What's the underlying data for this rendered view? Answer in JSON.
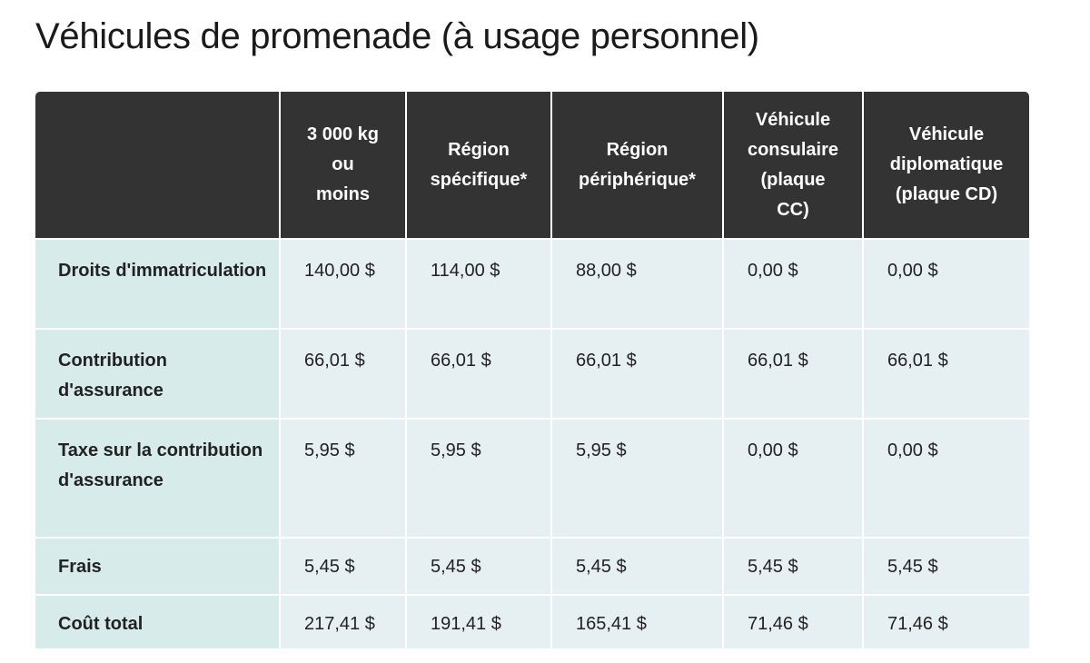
{
  "title": "Véhicules de promenade (à usage personnel)",
  "table": {
    "headers": [
      "",
      "3 000 kg\nou\nmoins",
      "Région\nspécifique*",
      "Région\npériphérique*",
      "Véhicule\nconsulaire\n(plaque\nCC)",
      "Véhicule\ndiplomatique\n(plaque CD)"
    ],
    "rows": [
      {
        "label": "Droits d'immatriculation",
        "values": [
          "140,00 $",
          "114,00 $",
          "88,00 $",
          "0,00 $",
          "0,00 $"
        ]
      },
      {
        "label": "Contribution d'assurance",
        "values": [
          "66,01 $",
          "66,01 $",
          "66,01 $",
          "66,01 $",
          "66,01 $"
        ]
      },
      {
        "label": "Taxe sur la contribution d'assurance",
        "values": [
          "5,95 $",
          "5,95 $",
          "5,95 $",
          "0,00 $",
          "0,00 $"
        ]
      },
      {
        "label": "Frais",
        "values": [
          "5,45 $",
          "5,45 $",
          "5,45 $",
          "5,45 $",
          "5,45 $"
        ]
      },
      {
        "label": "Coût total",
        "values": [
          "217,41 $",
          "191,41 $",
          "165,41 $",
          "71,46 $",
          "71,46 $"
        ]
      }
    ]
  },
  "colors": {
    "header_bg": "#333333",
    "row_header_bg": "#d6ebea",
    "cell_bg": "#e6eff1"
  }
}
